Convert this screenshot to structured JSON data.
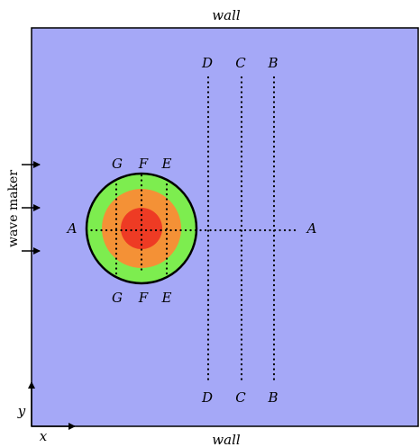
{
  "labels": {
    "wall_top": "wall",
    "wall_bottom": "wall",
    "wave_maker": "wave maker",
    "axis_x": "x",
    "axis_y": "y"
  },
  "sections": {
    "A": "A",
    "B": "B",
    "C": "C",
    "D": "D",
    "E": "E",
    "F": "F",
    "G": "G"
  },
  "colors": {
    "tank": "#a5a8f7",
    "outer_ring": "#7ded4f",
    "middle_ring": "#f49136",
    "inner_core": "#ee3b24",
    "outline": "#000000"
  }
}
